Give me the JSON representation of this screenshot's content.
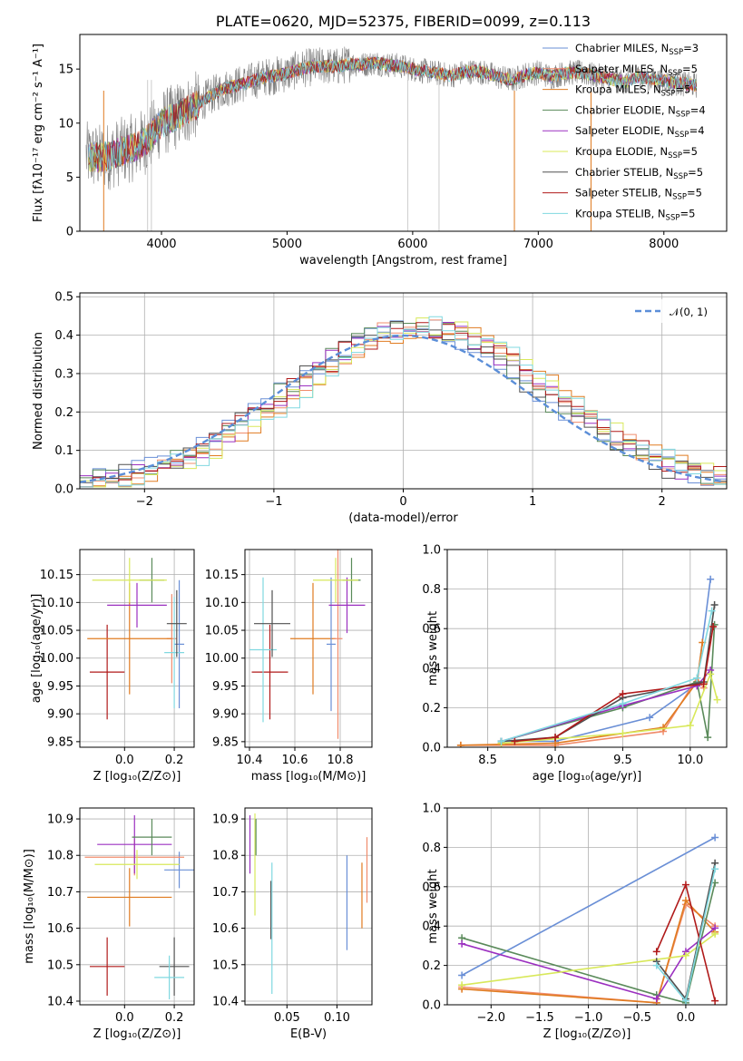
{
  "colors": {
    "Chabrier MILES": "#6a8fd6",
    "Salpeter MILES": "#f08c6c",
    "Kroupa MILES": "#e07b20",
    "Chabrier ELODIE": "#5a8a5a",
    "Salpeter ELODIE": "#9b30c0",
    "Kroupa ELODIE": "#d8e85a",
    "Chabrier STELIB": "#505050",
    "Salpeter STELIB": "#b01a1a",
    "Kroupa STELIB": "#80d8e0"
  },
  "chart_data": [
    {
      "id": "spectrum",
      "type": "line",
      "title": "PLATE=0620, MJD=52375, FIBERID=0099, z=0.113",
      "xlabel": "wavelength [Angstrom, rest frame]",
      "ylabel": "Flux [fλ10⁻¹⁷ erg cm⁻² s⁻¹ A⁻¹]",
      "xlim": [
        3350,
        8500
      ],
      "ylim": [
        0,
        18.2
      ],
      "xticks": [
        4000,
        5000,
        6000,
        7000,
        8000
      ],
      "yticks": [
        0,
        5,
        10,
        15
      ],
      "series_x_range": [
        3400,
        8260
      ],
      "data_anchor_x": [
        3400,
        3500,
        3600,
        3700,
        3800,
        3900,
        4000,
        4100,
        4200,
        4300,
        4400,
        4500,
        4600,
        4700,
        4800,
        4900,
        5000,
        5100,
        5200,
        5300,
        5400,
        5500,
        5600,
        5700,
        5800,
        5900,
        6000,
        6100,
        6200,
        6300,
        6400,
        6500,
        6600,
        6700,
        6800,
        6900,
        7000,
        7100,
        7200,
        7300,
        7400,
        7500,
        7600,
        7700,
        7800,
        7900,
        8000,
        8100,
        8200,
        8260
      ],
      "data_anchor_y": [
        7.0,
        6.8,
        7.0,
        7.5,
        7.8,
        8.6,
        10.0,
        10.5,
        11.2,
        11.8,
        12.6,
        13.2,
        13.5,
        13.8,
        14.2,
        14.4,
        14.6,
        15.0,
        15.2,
        15.3,
        15.2,
        15.5,
        15.4,
        15.6,
        15.4,
        15.3,
        15.0,
        14.8,
        14.6,
        14.4,
        14.7,
        14.8,
        14.6,
        14.2,
        14.0,
        14.5,
        14.7,
        14.3,
        14.6,
        14.7,
        14.5,
        14.3,
        14.0,
        13.8,
        14.3,
        14.0,
        13.9,
        13.7,
        13.6,
        13.5
      ],
      "legend": [
        {
          "series": "Chabrier MILES",
          "text": "Chabrier MILES, N",
          "sub": "SSP",
          "n": "=3"
        },
        {
          "series": "Salpeter MILES",
          "text": "Salpeter MILES, N",
          "sub": "SSP",
          "n": "=5"
        },
        {
          "series": "Kroupa MILES",
          "text": "Kroupa MILES, N",
          "sub": "SSP",
          "n": "=5"
        },
        {
          "series": "Chabrier ELODIE",
          "text": "Chabrier ELODIE, N",
          "sub": "SSP",
          "n": "=4"
        },
        {
          "series": "Salpeter ELODIE",
          "text": "Salpeter ELODIE, N",
          "sub": "SSP",
          "n": "=4"
        },
        {
          "series": "Kroupa ELODIE",
          "text": "Kroupa ELODIE, N",
          "sub": "SSP",
          "n": "=5"
        },
        {
          "series": "Chabrier STELIB",
          "text": "Chabrier STELIB, N",
          "sub": "SSP",
          "n": "=5"
        },
        {
          "series": "Salpeter STELIB",
          "text": "Salpeter STELIB, N",
          "sub": "SSP",
          "n": "=5"
        },
        {
          "series": "Kroupa STELIB",
          "text": "Kroupa STELIB, N",
          "sub": "SSP",
          "n": "=5"
        }
      ],
      "legend_loc": "right"
    },
    {
      "id": "residuals",
      "type": "histogram",
      "xlabel": "(data-model)/error",
      "ylabel": "Normed distribution",
      "xlim": [
        -2.5,
        2.5
      ],
      "ylim": [
        0,
        0.51
      ],
      "xticks": [
        -2,
        -1,
        0,
        1,
        2
      ],
      "yticks": [
        0.0,
        0.1,
        0.2,
        0.3,
        0.4,
        0.5
      ],
      "bin_width": 0.1,
      "legend_label": "𝒩(0, 1)",
      "legend_loc": "top-right",
      "grid": true
    },
    {
      "id": "age_vs_Z",
      "type": "errorbar",
      "xlabel": "Z [log₁₀(Z/Z⊙)]",
      "ylabel": "age  [log₁₀(age/yr)]",
      "xlim": [
        -0.18,
        0.28
      ],
      "ylim": [
        9.84,
        10.195
      ],
      "xticks": [
        0.0,
        0.2
      ],
      "yticks": [
        9.85,
        9.9,
        9.95,
        10.0,
        10.05,
        10.1,
        10.15
      ],
      "points": [
        {
          "series": "Salpeter STELIB",
          "x": -0.07,
          "y": 9.975,
          "xerr": 0.07,
          "yerr": 0.085
        },
        {
          "series": "Chabrier MILES",
          "x": 0.22,
          "y": 10.025,
          "xerr": 0.02,
          "yerr": 0.115
        },
        {
          "series": "Salpeter MILES",
          "x": 0.19,
          "y": 10.035,
          "xerr": 0.02,
          "yerr": 0.08
        },
        {
          "series": "Kroupa MILES",
          "x": 0.02,
          "y": 10.035,
          "xerr": 0.17,
          "yerr": 0.1
        },
        {
          "series": "Kroupa STELIB",
          "x": 0.2,
          "y": 10.01,
          "xerr": 0.04,
          "yerr": 0.1
        },
        {
          "series": "Salpeter ELODIE",
          "x": 0.05,
          "y": 10.095,
          "xerr": 0.12,
          "yerr": 0.04
        },
        {
          "series": "Chabrier ELODIE",
          "x": 0.11,
          "y": 10.14,
          "xerr": 0.05,
          "yerr": 0.04
        },
        {
          "series": "Kroupa ELODIE",
          "x": 0.02,
          "y": 10.14,
          "xerr": 0.15,
          "yerr": 0.04
        },
        {
          "series": "Chabrier STELIB",
          "x": 0.21,
          "y": 10.062,
          "xerr": 0.04,
          "yerr": 0.06
        }
      ],
      "grid": true
    },
    {
      "id": "age_vs_mass",
      "type": "errorbar",
      "xlabel": "mass [log₁₀(M/M⊙)]",
      "ylabel": "",
      "xlim": [
        10.38,
        10.94
      ],
      "ylim": [
        9.84,
        10.195
      ],
      "xticks": [
        10.4,
        10.6,
        10.8
      ],
      "yticks": [
        9.85,
        9.9,
        9.95,
        10.0,
        10.05,
        10.1,
        10.15
      ],
      "points": [
        {
          "series": "Salpeter STELIB",
          "x": 10.49,
          "y": 9.975,
          "xerr": 0.08,
          "yerr": 0.085
        },
        {
          "series": "Kroupa STELIB",
          "x": 10.46,
          "y": 10.015,
          "xerr": 0.06,
          "yerr": 0.13
        },
        {
          "series": "Chabrier STELIB",
          "x": 10.5,
          "y": 10.062,
          "xerr": 0.08,
          "yerr": 0.06
        },
        {
          "series": "Kroupa MILES",
          "x": 10.68,
          "y": 10.035,
          "xerr": 0.1,
          "yerr": 0.1
        },
        {
          "series": "Salpeter MILES",
          "x": 10.79,
          "y": 10.035,
          "xerr": 0.02,
          "yerr": 0.18
        },
        {
          "series": "Chabrier MILES",
          "x": 10.76,
          "y": 10.025,
          "xerr": 0.02,
          "yerr": 0.12
        },
        {
          "series": "Salpeter ELODIE",
          "x": 10.83,
          "y": 10.095,
          "xerr": 0.08,
          "yerr": 0.05
        },
        {
          "series": "Chabrier ELODIE",
          "x": 10.85,
          "y": 10.14,
          "xerr": 0.04,
          "yerr": 0.04
        },
        {
          "series": "Kroupa ELODIE",
          "x": 10.78,
          "y": 10.14,
          "xerr": 0.1,
          "yerr": 0.04
        }
      ],
      "grid": true
    },
    {
      "id": "massweight_vs_age",
      "type": "line",
      "xlabel": "age  [log₁₀(age/yr)]",
      "ylabel": "mass weight",
      "xlim": [
        8.2,
        10.27
      ],
      "ylim": [
        0,
        1.0
      ],
      "xticks": [
        8.5,
        9.0,
        9.5,
        10.0
      ],
      "yticks": [
        0.0,
        0.2,
        0.4,
        0.6,
        0.8,
        1.0
      ],
      "series": [
        {
          "name": "Chabrier MILES",
          "x": [
            8.6,
            9.0,
            9.7,
            10.05,
            10.15
          ],
          "y": [
            0.03,
            0.03,
            0.15,
            0.32,
            0.85
          ]
        },
        {
          "name": "Salpeter MILES",
          "x": [
            8.3,
            9.0,
            9.8,
            10.05,
            10.1
          ],
          "y": [
            0.01,
            0.01,
            0.08,
            0.35,
            0.3
          ]
        },
        {
          "name": "Kroupa MILES",
          "x": [
            8.3,
            9.0,
            9.8,
            10.05,
            10.09
          ],
          "y": [
            0.01,
            0.02,
            0.1,
            0.33,
            0.53
          ]
        },
        {
          "name": "Chabrier ELODIE",
          "x": [
            8.6,
            9.5,
            10.05,
            10.13,
            10.18
          ],
          "y": [
            0.03,
            0.2,
            0.33,
            0.05,
            0.62
          ]
        },
        {
          "name": "Salpeter ELODIE",
          "x": [
            8.6,
            9.5,
            10.05,
            10.15
          ],
          "y": [
            0.03,
            0.21,
            0.31,
            0.39
          ]
        },
        {
          "name": "Kroupa ELODIE",
          "x": [
            8.6,
            9.5,
            10.0,
            10.15,
            10.2
          ],
          "y": [
            0.02,
            0.07,
            0.11,
            0.37,
            0.24
          ]
        },
        {
          "name": "Chabrier STELIB",
          "x": [
            8.6,
            9.0,
            9.5,
            10.1,
            10.18
          ],
          "y": [
            0.03,
            0.05,
            0.25,
            0.33,
            0.72
          ]
        },
        {
          "name": "Salpeter STELIB",
          "x": [
            8.7,
            9.0,
            9.5,
            10.1,
            10.17
          ],
          "y": [
            0.03,
            0.05,
            0.27,
            0.32,
            0.61
          ]
        },
        {
          "name": "Kroupa STELIB",
          "x": [
            8.6,
            9.5,
            10.05,
            10.16
          ],
          "y": [
            0.03,
            0.22,
            0.35,
            0.69
          ]
        }
      ],
      "grid": true
    },
    {
      "id": "mass_vs_Z",
      "type": "errorbar",
      "xlabel": "Z [log₁₀(Z/Z⊙)]",
      "ylabel": "mass [log₁₀(M/M⊙)]",
      "xlim": [
        -0.18,
        0.28
      ],
      "ylim": [
        10.39,
        10.93
      ],
      "xticks": [
        0.0,
        0.2
      ],
      "yticks": [
        10.4,
        10.5,
        10.6,
        10.7,
        10.8,
        10.9
      ],
      "points": [
        {
          "series": "Salpeter STELIB",
          "x": -0.07,
          "y": 10.495,
          "xerr": 0.07,
          "yerr": 0.08
        },
        {
          "series": "Chabrier STELIB",
          "x": 0.2,
          "y": 10.495,
          "xerr": 0.06,
          "yerr": 0.08
        },
        {
          "series": "Kroupa STELIB",
          "x": 0.18,
          "y": 10.465,
          "xerr": 0.06,
          "yerr": 0.06
        },
        {
          "series": "Kroupa MILES",
          "x": 0.02,
          "y": 10.685,
          "xerr": 0.17,
          "yerr": 0.08
        },
        {
          "series": "Chabrier MILES",
          "x": 0.22,
          "y": 10.76,
          "xerr": 0.06,
          "yerr": 0.05
        },
        {
          "series": "Salpeter MILES",
          "x": 0.04,
          "y": 10.795,
          "xerr": 0.2,
          "yerr": 0.05
        },
        {
          "series": "Salpeter ELODIE",
          "x": 0.04,
          "y": 10.83,
          "xerr": 0.15,
          "yerr": 0.08
        },
        {
          "series": "Kroupa ELODIE",
          "x": 0.05,
          "y": 10.775,
          "xerr": 0.17,
          "yerr": 0.04
        },
        {
          "series": "Chabrier ELODIE",
          "x": 0.11,
          "y": 10.85,
          "xerr": 0.08,
          "yerr": 0.05
        }
      ],
      "grid": true
    },
    {
      "id": "mass_vs_EBV",
      "type": "errorbar",
      "xlabel": "E(B-V)",
      "ylabel": "",
      "xlim": [
        0.008,
        0.135
      ],
      "ylim": [
        10.39,
        10.93
      ],
      "xticks": [
        0.05,
        0.1
      ],
      "xticklabels": [
        "0.05",
        "0.10"
      ],
      "yticks": [
        10.4,
        10.5,
        10.6,
        10.7,
        10.8,
        10.9
      ],
      "points": [
        {
          "series": "Salpeter ELODIE",
          "x": 0.013,
          "y": 10.83,
          "xerr": 0.0,
          "yerr": 0.08
        },
        {
          "series": "Kroupa ELODIE",
          "x": 0.018,
          "y": 10.775,
          "xerr": 0.0,
          "yerr": 0.14
        },
        {
          "series": "Chabrier ELODIE",
          "x": 0.019,
          "y": 10.85,
          "xerr": 0.0,
          "yerr": 0.05
        },
        {
          "series": "Chabrier STELIB",
          "x": 0.034,
          "y": 10.65,
          "xerr": 0.0,
          "yerr": 0.08
        },
        {
          "series": "Kroupa STELIB",
          "x": 0.035,
          "y": 10.6,
          "xerr": 0.0,
          "yerr": 0.18
        },
        {
          "series": "Chabrier MILES",
          "x": 0.11,
          "y": 10.67,
          "xerr": 0.0,
          "yerr": 0.13
        },
        {
          "series": "Kroupa MILES",
          "x": 0.125,
          "y": 10.69,
          "xerr": 0.0,
          "yerr": 0.09
        },
        {
          "series": "Salpeter MILES",
          "x": 0.13,
          "y": 10.76,
          "xerr": 0.0,
          "yerr": 0.09
        }
      ],
      "grid": true
    },
    {
      "id": "massweight_vs_Z",
      "type": "line",
      "xlabel": "Z [log₁₀(Z/Z⊙)]",
      "ylabel": "mass weight",
      "xlim": [
        -2.45,
        0.42
      ],
      "ylim": [
        0,
        1.0
      ],
      "xticks": [
        -2.0,
        -1.5,
        -1.0,
        -0.5,
        0.0
      ],
      "yticks": [
        0.0,
        0.2,
        0.4,
        0.6,
        0.8,
        1.0
      ],
      "series": [
        {
          "name": "Chabrier MILES",
          "x": [
            -2.3,
            0.3
          ],
          "y": [
            0.15,
            0.85
          ]
        },
        {
          "name": "Salpeter MILES",
          "x": [
            -2.3,
            -0.3,
            0.0,
            0.3
          ],
          "y": [
            0.09,
            0.01,
            0.51,
            0.4
          ]
        },
        {
          "name": "Kroupa MILES",
          "x": [
            -2.3,
            -0.3,
            0.0,
            0.3
          ],
          "y": [
            0.08,
            0.01,
            0.53,
            0.37
          ]
        },
        {
          "name": "Chabrier ELODIE",
          "x": [
            -2.3,
            -0.3,
            0.0,
            0.3
          ],
          "y": [
            0.34,
            0.05,
            0.01,
            0.62
          ]
        },
        {
          "name": "Salpeter ELODIE",
          "x": [
            -2.3,
            -0.3,
            0.0,
            0.3
          ],
          "y": [
            0.31,
            0.03,
            0.27,
            0.39
          ]
        },
        {
          "name": "Kroupa ELODIE",
          "x": [
            -2.3,
            0.0,
            0.3
          ],
          "y": [
            0.1,
            0.25,
            0.36
          ]
        },
        {
          "name": "Chabrier STELIB",
          "x": [
            -0.3,
            0.0,
            0.3
          ],
          "y": [
            0.22,
            0.03,
            0.72
          ]
        },
        {
          "name": "Salpeter STELIB",
          "x": [
            -0.3,
            0.0,
            0.3
          ],
          "y": [
            0.27,
            0.61,
            0.02
          ]
        },
        {
          "name": "Kroupa STELIB",
          "x": [
            -0.3,
            0.0,
            0.3
          ],
          "y": [
            0.2,
            0.02,
            0.69
          ]
        }
      ],
      "grid": true
    }
  ]
}
